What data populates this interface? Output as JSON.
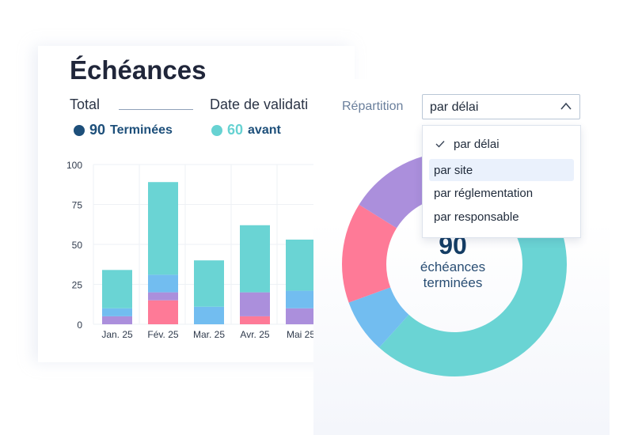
{
  "header": {
    "title": "Échéances"
  },
  "tabs": [
    {
      "label": "Total"
    },
    {
      "label": "Date de validati"
    }
  ],
  "stats": [
    {
      "value": "90",
      "label": "Terminées",
      "color": "#1d4f7a"
    },
    {
      "value": "60",
      "label": "avant",
      "color": "#67d2d2"
    }
  ],
  "repartition": {
    "label": "Répartition",
    "selected": "par délai",
    "options": [
      "par délai",
      "par site",
      "par réglementation",
      "par responsable"
    ]
  },
  "colors": {
    "teal": "#6ad4d4",
    "blue": "#72bdf0",
    "purple": "#ab8fdc",
    "pink": "#fe7a97"
  },
  "chart_data": [
    {
      "type": "bar",
      "stacked": true,
      "categories": [
        "Jan. 25",
        "Fév. 25",
        "Mar. 25",
        "Avr. 25",
        "Mai 25"
      ],
      "series": [
        {
          "color": "#fe7a97",
          "values": [
            0,
            15,
            0,
            5,
            0
          ]
        },
        {
          "color": "#ab8fdc",
          "values": [
            5,
            5,
            0,
            15,
            10
          ]
        },
        {
          "color": "#72bdf0",
          "values": [
            5,
            11,
            11,
            0,
            11
          ]
        },
        {
          "color": "#6ad4d4",
          "values": [
            24,
            58,
            29,
            42,
            32
          ]
        }
      ],
      "yticks": [
        "0",
        "25",
        "50",
        "75",
        "100"
      ],
      "ylim": [
        0,
        100
      ],
      "grid": true
    },
    {
      "type": "pie",
      "donut": true,
      "total": "90",
      "center_label": [
        "échéances",
        "terminées"
      ],
      "slices": [
        {
          "color": "#6ad4d4",
          "value": 58.5
        },
        {
          "color": "#72bdf0",
          "value": 7
        },
        {
          "color": "#fe7a97",
          "value": 13
        },
        {
          "color": "#ab8fdc",
          "value": 11.5
        }
      ]
    }
  ]
}
